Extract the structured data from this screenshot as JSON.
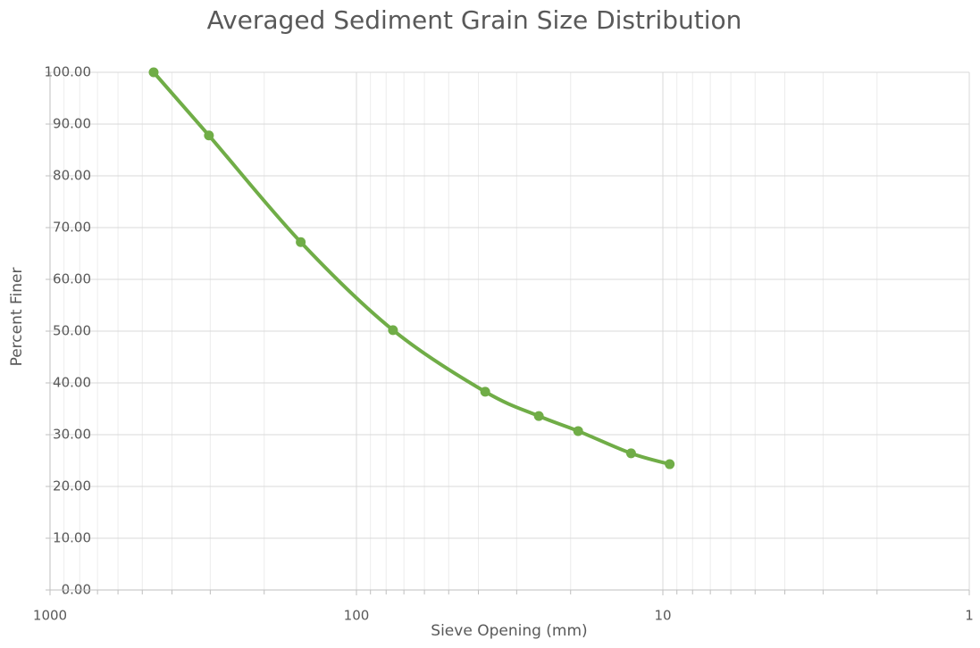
{
  "chart_data": {
    "type": "line",
    "title": "Averaged Sediment Grain Size Distribution",
    "x_label": "Sieve Opening (mm)",
    "y_label": "Percent Finer",
    "series": [
      {
        "name": "Percent Finer",
        "color": "#70ad47",
        "x": [
          459,
          303,
          152,
          76,
          38,
          25.4,
          18.9,
          12.7,
          9.5
        ],
        "values": [
          100,
          87.8,
          67.2,
          50.2,
          38.3,
          33.6,
          30.7,
          26.4,
          24.3
        ]
      }
    ],
    "xlim": [
      1000,
      1
    ],
    "xticks": [
      1000,
      100,
      10,
      1
    ],
    "x_log": true,
    "ylim": [
      0,
      100
    ],
    "yticks": [
      {
        "value": 0,
        "label": "0.00"
      },
      {
        "value": 10,
        "label": "10.00"
      },
      {
        "value": 20,
        "label": "20.00"
      },
      {
        "value": 30,
        "label": "30.00"
      },
      {
        "value": 40,
        "label": "40.00"
      },
      {
        "value": 50,
        "label": "50.00"
      },
      {
        "value": 60,
        "label": "60.00"
      },
      {
        "value": 70,
        "label": "70.00"
      },
      {
        "value": 80,
        "label": "80.00"
      },
      {
        "value": 90,
        "label": "90.00"
      },
      {
        "value": 100,
        "label": "100.00"
      }
    ],
    "grid": true,
    "smooth": true
  }
}
